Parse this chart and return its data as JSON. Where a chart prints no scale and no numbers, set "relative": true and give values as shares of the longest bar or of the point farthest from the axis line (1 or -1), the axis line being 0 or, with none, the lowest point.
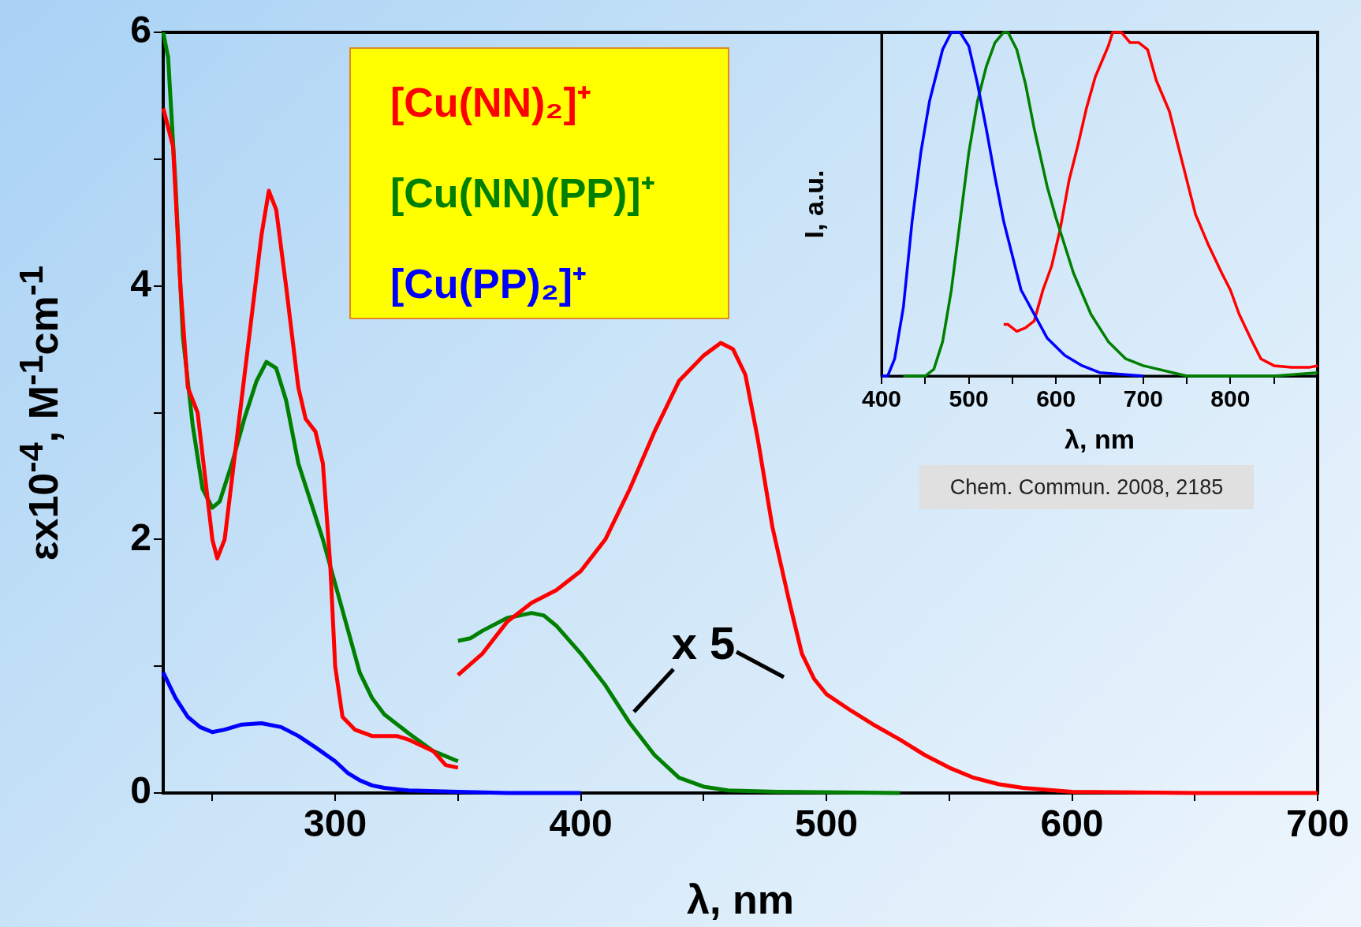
{
  "chart_data": [
    {
      "type": "line",
      "xlabel": "λ, nm",
      "ylabel": "εx10$^{-4}$, M$^{-1}$cm$^{-1}$",
      "xlim": [
        230,
        700
      ],
      "ylim": [
        0,
        6
      ],
      "xticks": [
        {
          "value": 250,
          "label": null
        },
        300,
        {
          "value": 350,
          "label": null
        },
        400,
        {
          "value": 450,
          "label": null
        },
        500,
        {
          "value": 550,
          "label": null
        },
        600,
        {
          "value": 650,
          "label": null
        },
        700
      ],
      "yticks": [
        0,
        {
          "value": 1,
          "label": null
        },
        2,
        {
          "value": 3,
          "label": null
        },
        4,
        {
          "value": 5,
          "label": null
        },
        6
      ],
      "grid": false,
      "legend": "top",
      "marker": "none",
      "line_style": "solid",
      "annotations": [
        "x 5",
        "Chem. Commun. 2008, 2185"
      ],
      "series": [
        {
          "name": "[Cu(NN)₂]⁺",
          "color": "#ff0000",
          "x": [
            230,
            234,
            237,
            240,
            244,
            247,
            250,
            252,
            255,
            260,
            265,
            270,
            273,
            276,
            280,
            285,
            288,
            292,
            295,
            298,
            300,
            303,
            308,
            315,
            320,
            325,
            330,
            340,
            345,
            350
          ],
          "values": [
            5.4,
            5.1,
            4.0,
            3.2,
            3.0,
            2.5,
            2.0,
            1.85,
            2.0,
            2.8,
            3.6,
            4.4,
            4.75,
            4.6,
            4.0,
            3.2,
            2.95,
            2.85,
            2.6,
            1.8,
            1.0,
            0.6,
            0.5,
            0.45,
            0.45,
            0.45,
            0.42,
            0.33,
            0.22,
            0.2
          ]
        },
        {
          "color": "#ff0000",
          "x": [
            350,
            360,
            370,
            380,
            390,
            400,
            410,
            420,
            430,
            440,
            450,
            457,
            462,
            467,
            472,
            478,
            485,
            490,
            495,
            500,
            510,
            520,
            530,
            540,
            550,
            560,
            570,
            580,
            600,
            650,
            700
          ],
          "values": [
            0.93,
            1.1,
            1.35,
            1.5,
            1.6,
            1.75,
            2.0,
            2.4,
            2.85,
            3.25,
            3.45,
            3.55,
            3.5,
            3.3,
            2.8,
            2.1,
            1.5,
            1.1,
            0.9,
            0.78,
            0.65,
            0.53,
            0.42,
            0.3,
            0.2,
            0.12,
            0.07,
            0.04,
            0.01,
            0,
            0
          ]
        },
        {
          "name": "[Cu(NN)(PP)]⁺",
          "color": "#008000",
          "x": [
            230,
            232,
            235,
            238,
            242,
            246,
            250,
            253,
            258,
            263,
            268,
            272,
            276,
            280,
            285,
            290,
            295,
            300,
            305,
            310,
            315,
            320,
            330,
            340,
            350
          ],
          "values": [
            6.0,
            5.8,
            4.8,
            3.6,
            2.9,
            2.4,
            2.25,
            2.3,
            2.6,
            2.95,
            3.25,
            3.4,
            3.35,
            3.1,
            2.6,
            2.3,
            2.0,
            1.65,
            1.3,
            0.95,
            0.75,
            0.62,
            0.47,
            0.33,
            0.25
          ]
        },
        {
          "color": "#008000",
          "x": [
            350,
            355,
            360,
            370,
            380,
            385,
            390,
            400,
            410,
            420,
            430,
            440,
            450,
            460,
            480,
            530
          ],
          "values": [
            1.2,
            1.22,
            1.28,
            1.38,
            1.42,
            1.4,
            1.32,
            1.1,
            0.85,
            0.55,
            0.3,
            0.12,
            0.05,
            0.02,
            0.01,
            0
          ]
        },
        {
          "name": "[Cu(PP)₂]⁺",
          "color": "#0000ff",
          "x": [
            230,
            235,
            240,
            245,
            250,
            255,
            262,
            270,
            278,
            285,
            292,
            300,
            305,
            310,
            315,
            320,
            330,
            350,
            370,
            400
          ],
          "values": [
            0.95,
            0.75,
            0.6,
            0.52,
            0.48,
            0.5,
            0.54,
            0.55,
            0.52,
            0.45,
            0.36,
            0.25,
            0.16,
            0.1,
            0.06,
            0.04,
            0.02,
            0.01,
            0,
            0
          ]
        }
      ]
    },
    {
      "type": "line",
      "xlabel": "λ, nm",
      "ylabel": "I, a.u.",
      "relative": true,
      "xlim": [
        400,
        900
      ],
      "xticks": [
        400,
        {
          "value": 450,
          "label": null
        },
        500,
        {
          "value": 550,
          "label": null
        },
        600,
        {
          "value": 650,
          "label": null
        },
        700,
        {
          "value": 750,
          "label": null
        },
        800,
        {
          "value": 850,
          "label": null
        },
        {
          "value": 900,
          "label": null
        }
      ],
      "grid": false,
      "marker": "none",
      "line_style": "solid",
      "series": [
        {
          "color": "#0000ff",
          "x": [
            400,
            407,
            415,
            425,
            435,
            445,
            455,
            470,
            480,
            490,
            500,
            510,
            520,
            530,
            540,
            550,
            560,
            575,
            590,
            610,
            630,
            650,
            700
          ],
          "values": [
            0,
            0,
            0.05,
            0.2,
            0.45,
            0.65,
            0.8,
            0.95,
            1.0,
            1.0,
            0.96,
            0.85,
            0.72,
            0.58,
            0.45,
            0.35,
            0.25,
            0.18,
            0.11,
            0.06,
            0.03,
            0.01,
            0
          ]
        },
        {
          "color": "#008000",
          "x": [
            425,
            450,
            460,
            470,
            480,
            490,
            500,
            510,
            520,
            530,
            540,
            545,
            555,
            565,
            575,
            590,
            600,
            610,
            620,
            640,
            660,
            680,
            700,
            750,
            850,
            900
          ],
          "values": [
            0,
            0,
            0.02,
            0.1,
            0.25,
            0.45,
            0.65,
            0.8,
            0.9,
            0.97,
            1.0,
            1.0,
            0.95,
            0.85,
            0.72,
            0.55,
            0.46,
            0.38,
            0.3,
            0.18,
            0.1,
            0.05,
            0.03,
            0,
            0,
            0.01
          ]
        },
        {
          "color": "#ff0000",
          "x": [
            540,
            545,
            555,
            565,
            575,
            585,
            595,
            605,
            615,
            625,
            635,
            645,
            655,
            660,
            665,
            675,
            685,
            695,
            705,
            715,
            730,
            745,
            760,
            775,
            790,
            800,
            810,
            825,
            835,
            850,
            870,
            890,
            900
          ],
          "values": [
            0.15,
            0.15,
            0.13,
            0.14,
            0.16,
            0.25,
            0.32,
            0.43,
            0.57,
            0.67,
            0.78,
            0.87,
            0.93,
            0.96,
            1.0,
            1.0,
            0.97,
            0.97,
            0.95,
            0.86,
            0.77,
            0.62,
            0.47,
            0.38,
            0.3,
            0.25,
            0.18,
            0.1,
            0.05,
            0.03,
            0.025,
            0.025,
            0.03
          ]
        }
      ]
    }
  ]
}
